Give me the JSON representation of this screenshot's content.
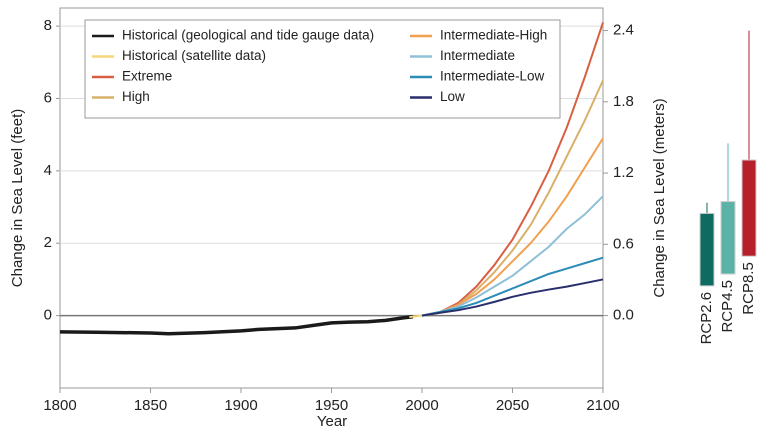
{
  "chart_data": {
    "type": "line",
    "xlabel": "Year",
    "ylabel": "Change in Sea Level (feet)",
    "y2label": "Change in Sea Level (meters)",
    "xlim": [
      1800,
      2100
    ],
    "xticks": [
      1800,
      1850,
      1900,
      1950,
      2000,
      2050,
      2100
    ],
    "ylim": [
      -2,
      8.5
    ],
    "yticks": [
      0,
      2,
      4,
      6,
      8
    ],
    "y2lim": [
      -0.61,
      2.59
    ],
    "y2ticks": [
      {
        "value": 0,
        "label": "0.0"
      },
      0.6,
      1.2,
      1.8,
      2.4
    ],
    "grid": true,
    "legend": "top",
    "series": [
      {
        "name": "Historical (geological and tide gauge data)",
        "color": "#1a1a1a",
        "x": [
          1800,
          1820,
          1850,
          1860,
          1880,
          1900,
          1910,
          1920,
          1930,
          1940,
          1950,
          1960,
          1970,
          1980,
          1990,
          1995
        ],
        "values": [
          -0.45,
          -0.46,
          -0.48,
          -0.5,
          -0.47,
          -0.42,
          -0.38,
          -0.36,
          -0.34,
          -0.27,
          -0.2,
          -0.18,
          -0.17,
          -0.13,
          -0.06,
          -0.03
        ]
      },
      {
        "name": "Historical (satellite data)",
        "color": "#f5d67a",
        "x": [
          1993,
          2000,
          2010,
          2015
        ],
        "values": [
          -0.04,
          0,
          0.08,
          0.12
        ]
      },
      {
        "name": "Extreme",
        "color": "#d95f43",
        "x": [
          2000,
          2010,
          2020,
          2030,
          2040,
          2050,
          2060,
          2070,
          2080,
          2090,
          2100
        ],
        "values": [
          0,
          0.1,
          0.35,
          0.8,
          1.4,
          2.1,
          3.0,
          4.0,
          5.2,
          6.6,
          8.1
        ]
      },
      {
        "name": "High",
        "color": "#d9b06a",
        "x": [
          2000,
          2010,
          2020,
          2030,
          2040,
          2050,
          2060,
          2070,
          2080,
          2090,
          2100
        ],
        "values": [
          0,
          0.1,
          0.3,
          0.7,
          1.2,
          1.8,
          2.5,
          3.4,
          4.4,
          5.4,
          6.5
        ]
      },
      {
        "name": "Intermediate-High",
        "color": "#f0a050",
        "x": [
          2000,
          2010,
          2020,
          2030,
          2040,
          2050,
          2060,
          2070,
          2080,
          2090,
          2100
        ],
        "values": [
          0,
          0.1,
          0.3,
          0.6,
          1.0,
          1.5,
          2.0,
          2.6,
          3.3,
          4.1,
          4.9
        ]
      },
      {
        "name": "Intermediate",
        "color": "#8fc0d8",
        "x": [
          2000,
          2010,
          2020,
          2030,
          2040,
          2050,
          2060,
          2070,
          2080,
          2090,
          2100
        ],
        "values": [
          0,
          0.1,
          0.25,
          0.5,
          0.8,
          1.1,
          1.5,
          1.9,
          2.4,
          2.8,
          3.3
        ]
      },
      {
        "name": "Intermediate-Low",
        "color": "#2b8cb8",
        "x": [
          2000,
          2010,
          2020,
          2030,
          2040,
          2050,
          2060,
          2070,
          2080,
          2090,
          2100
        ],
        "values": [
          0,
          0.1,
          0.2,
          0.35,
          0.55,
          0.75,
          0.95,
          1.15,
          1.3,
          1.45,
          1.6
        ]
      },
      {
        "name": "Low",
        "color": "#2a2f6b",
        "x": [
          2000,
          2010,
          2020,
          2030,
          2040,
          2050,
          2060,
          2070,
          2080,
          2090,
          2100
        ],
        "values": [
          0,
          0.08,
          0.15,
          0.25,
          0.38,
          0.52,
          0.63,
          0.72,
          0.8,
          0.9,
          1.0
        ]
      }
    ],
    "boxes": [
      {
        "name": "RCP2.6",
        "color": "#0e6b62",
        "q1": 0.25,
        "q3": 0.86,
        "whisker_high": 0.95
      },
      {
        "name": "RCP4.5",
        "color": "#5bb3a8",
        "q1": 0.35,
        "q3": 0.96,
        "whisker_high": 1.45
      },
      {
        "name": "RCP8.5",
        "color": "#b5202b",
        "q1": 0.5,
        "q3": 1.31,
        "whisker_high": 2.4
      }
    ]
  }
}
